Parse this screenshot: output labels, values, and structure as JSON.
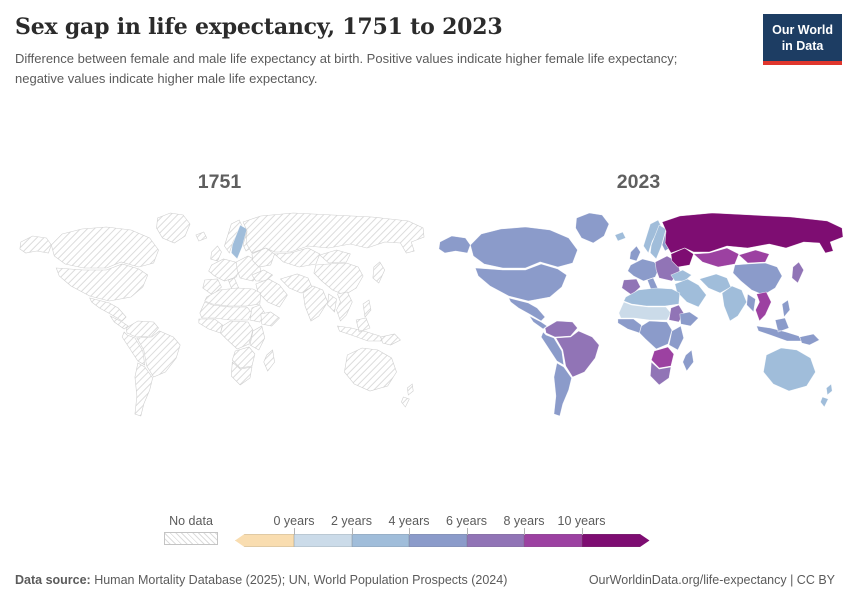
{
  "header": {
    "title": "Sex gap in life expectancy, 1751 to 2023",
    "subtitle": "Difference between female and male life expectancy at birth. Positive values indicate higher female life expectancy; negative values indicate higher male life expectancy.",
    "logo": {
      "line1": "Our World",
      "line2": "in Data"
    }
  },
  "colors": {
    "title-color": "#2b2b2b",
    "muted": "#5b5b5b",
    "logo-bg": "#1d3d63",
    "logo-accent": "#e0362d",
    "nodata-stroke": "#cfcfcf",
    "hatch": "#dcdcdc"
  },
  "chart_data": {
    "type": "choropleth",
    "title": "Sex gap in life expectancy, 1751 to 2023",
    "unit": "years (female minus male life expectancy at birth)",
    "legend": {
      "no_data_label": "No data",
      "tick_labels": [
        "0 years",
        "2 years",
        "4 years",
        "6 years",
        "8 years",
        "10 years"
      ],
      "buckets": [
        {
          "key": "neg",
          "label": "below 0 years",
          "color": "#f9ddb0"
        },
        {
          "key": "0-2",
          "label": "0 to 2 years",
          "color": "#cbdbe9"
        },
        {
          "key": "2-4",
          "label": "2 to 4 years",
          "color": "#a0bdda"
        },
        {
          "key": "4-6",
          "label": "4 to 6 years",
          "color": "#8b9bca"
        },
        {
          "key": "6-8",
          "label": "6 to 8 years",
          "color": "#9174b6"
        },
        {
          "key": "8-10",
          "label": "8 to 10 years",
          "color": "#9c41a1"
        },
        {
          "key": "10+",
          "label": "10+ years",
          "color": "#7e0d72"
        }
      ],
      "no_data_hatch_color": "#dcdcdc"
    },
    "maps": [
      {
        "year_label": "1751",
        "default": "no-data",
        "regions": {
          "sweden": "2-4"
        }
      },
      {
        "year_label": "2023",
        "default": "no-data",
        "regions": {
          "greenland": "4-6",
          "alaska": "4-6",
          "canada": "4-6",
          "usa": "4-6",
          "mexico": "4-6",
          "central-america": "4-6",
          "colombia-venezuela": "6-8",
          "brazil": "6-8",
          "peru-bolivia": "4-6",
          "southern-cone": "4-6",
          "iceland": "2-4",
          "uk": "4-6",
          "norway": "2-4",
          "sweden": "2-4",
          "finland": "4-6",
          "west-europe": "4-6",
          "iberia": "6-8",
          "italy": "4-6",
          "east-europe": "6-8",
          "ukraine-belarus": "10+",
          "russia": "10+",
          "kazakhstan": "8-10",
          "mongolia": "8-10",
          "china": "4-6",
          "japan": "6-8",
          "turkey": "2-4",
          "middle-east": "2-4",
          "iran-region": "2-4",
          "india": "2-4",
          "myanmar": "4-6",
          "thailand-vietnam": "8-10",
          "philippines": "4-6",
          "indonesia": "4-6",
          "new-guinea": "4-6",
          "north-africa": "2-4",
          "sahel": "0-2",
          "west-africa": "4-6",
          "sudan-region": "6-8",
          "central-africa": "4-6",
          "horn-of-africa": "4-6",
          "east-africa": "4-6",
          "namibia-botswana": "8-10",
          "south-africa": "6-8",
          "madagascar": "4-6",
          "australia": "2-4",
          "new-zealand": "2-4"
        }
      }
    ]
  },
  "footer": {
    "source_label": "Data source:",
    "source_text": " Human Mortality Database (2025); UN, World Population Prospects (2024)",
    "link_text": "OurWorldinData.org/life-expectancy | CC BY"
  }
}
